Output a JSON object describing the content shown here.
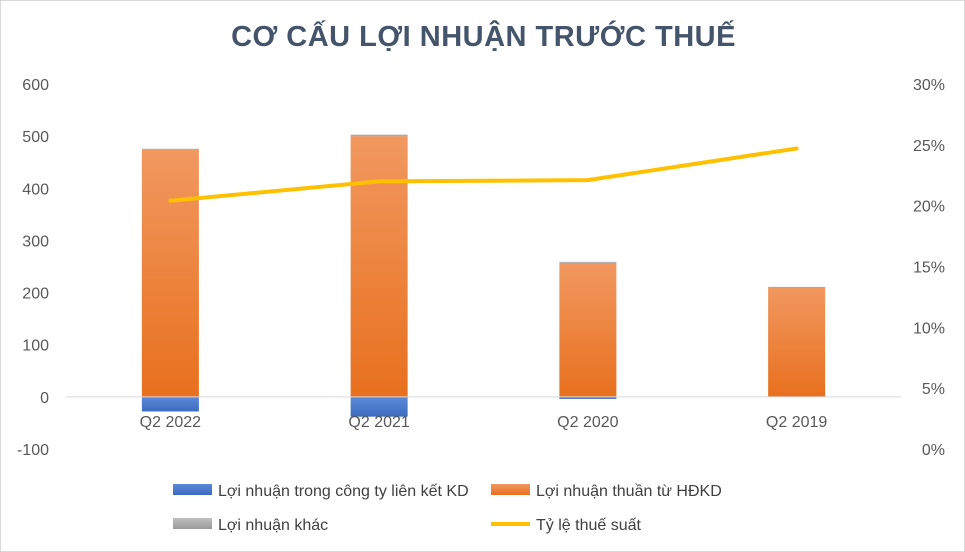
{
  "chart_data": {
    "type": "bar",
    "title": "CƠ CẤU LỢI NHUẬN TRƯỚC THUẾ",
    "categories": [
      "Q2 2022",
      "Q2 2021",
      "Q2 2020",
      "Q2 2019"
    ],
    "series": [
      {
        "name": "Lợi nhuận trong công ty liên kết KD",
        "kind": "bar",
        "axis": "left",
        "color": "#4472c4",
        "values": [
          -28,
          -38,
          -4,
          0
        ]
      },
      {
        "name": "Lợi nhuận thuần từ HĐKD",
        "kind": "bar",
        "axis": "left",
        "color": "#ed7d31",
        "values": [
          474,
          500,
          255,
          210
        ]
      },
      {
        "name": "Lợi nhuận khác",
        "kind": "bar",
        "axis": "left",
        "color": "#a5a5a5",
        "values": [
          2,
          3,
          4,
          1
        ]
      },
      {
        "name": "Tỷ lệ thuế suất",
        "kind": "line",
        "axis": "right",
        "color": "#ffc000",
        "values": [
          0.204,
          0.22,
          0.221,
          0.247
        ]
      }
    ],
    "y_left": {
      "ylim": [
        -100,
        600
      ],
      "ticks": [
        "-100",
        "0",
        "100",
        "200",
        "300",
        "400",
        "500",
        "600"
      ]
    },
    "y_right": {
      "ylim": [
        0,
        0.3
      ],
      "ticks": [
        "0%",
        "5%",
        "10%",
        "15%",
        "20%",
        "25%",
        "30%"
      ]
    },
    "grid": false,
    "legend_position": "bottom"
  }
}
